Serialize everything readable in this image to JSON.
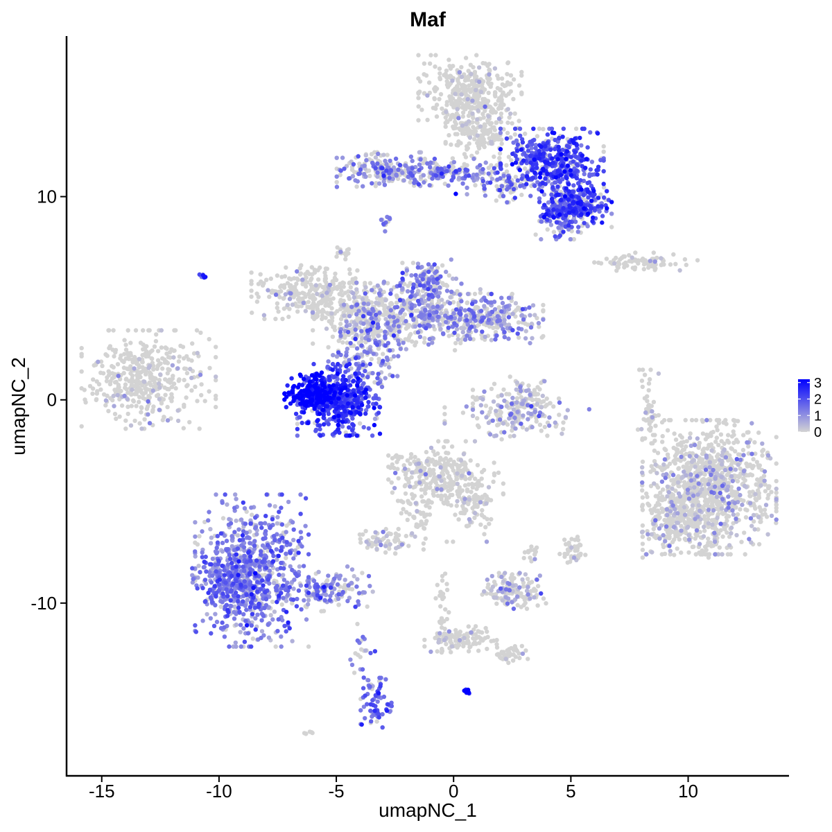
{
  "chart_data": {
    "type": "scatter",
    "title": "Maf",
    "xlabel": "umapNC_1",
    "ylabel": "umapNC_2",
    "xlim": [
      -16.5,
      14.3
    ],
    "ylim": [
      -18.5,
      17.9
    ],
    "x_ticks": [
      -15,
      -10,
      -5,
      0,
      5,
      10
    ],
    "x_tick_labels": [
      "-15",
      "-10",
      "-5",
      "0",
      "5",
      "10"
    ],
    "y_ticks": [
      -10,
      0,
      10
    ],
    "y_tick_labels": [
      "-10",
      "0",
      "10"
    ],
    "grid": false,
    "legend": {
      "placement": "right",
      "type": "colorbar",
      "min": 0,
      "max": 3.2,
      "ticks": [
        0,
        1,
        2,
        3
      ],
      "tick_labels": [
        "0",
        "1",
        "2",
        "3"
      ],
      "low_color": "#d3d3d3",
      "high_color": "#0000ff"
    },
    "clusters": [
      {
        "cx": -13.0,
        "cy": 1.0,
        "sx": 1.3,
        "sy": 1.1,
        "n": 420,
        "expr": 0.25,
        "p": 0.08
      },
      {
        "cx": -8.6,
        "cy": -8.4,
        "sx": 1.1,
        "sy": 1.7,
        "n": 700,
        "expr": 1.25,
        "p": 0.85
      },
      {
        "cx": -9.6,
        "cy": -9.0,
        "sx": 0.7,
        "sy": 0.7,
        "n": 180,
        "expr": 1.4,
        "p": 0.9
      },
      {
        "cx": -5.5,
        "cy": -9.3,
        "sx": 1.2,
        "sy": 0.5,
        "n": 160,
        "expr": 1.1,
        "p": 0.7
      },
      {
        "cx": -3.3,
        "cy": -15.0,
        "sx": 0.3,
        "sy": 0.6,
        "n": 70,
        "expr": 1.6,
        "p": 0.85
      },
      {
        "cx": -3.9,
        "cy": -12.5,
        "sx": 0.25,
        "sy": 0.9,
        "n": 25,
        "expr": 1.2,
        "p": 0.6
      },
      {
        "cx": -6.0,
        "cy": 0.3,
        "sx": 0.55,
        "sy": 0.45,
        "n": 200,
        "expr": 3.0,
        "p": 1.0
      },
      {
        "cx": -4.9,
        "cy": 0.0,
        "sx": 0.8,
        "sy": 0.8,
        "n": 480,
        "expr": 2.1,
        "p": 0.95
      },
      {
        "cx": -3.8,
        "cy": 2.5,
        "sx": 0.7,
        "sy": 1.2,
        "n": 200,
        "expr": 1.1,
        "p": 0.6
      },
      {
        "cx": -6.2,
        "cy": 5.3,
        "sx": 1.1,
        "sy": 0.6,
        "n": 260,
        "expr": 0.4,
        "p": 0.1
      },
      {
        "cx": -3.8,
        "cy": 4.2,
        "sx": 1.0,
        "sy": 0.7,
        "n": 260,
        "expr": 0.4,
        "p": 0.12
      },
      {
        "cx": -1.5,
        "cy": 4.2,
        "sx": 1.2,
        "sy": 0.8,
        "n": 320,
        "expr": 1.0,
        "p": 0.55
      },
      {
        "cx": 1.4,
        "cy": 4.0,
        "sx": 1.1,
        "sy": 0.55,
        "n": 280,
        "expr": 1.0,
        "p": 0.55
      },
      {
        "cx": -1.2,
        "cy": 5.8,
        "sx": 0.5,
        "sy": 0.5,
        "n": 120,
        "expr": 1.2,
        "p": 0.6
      },
      {
        "cx": 0.7,
        "cy": 15.2,
        "sx": 1.0,
        "sy": 0.8,
        "n": 340,
        "expr": 0.3,
        "p": 0.05
      },
      {
        "cx": 1.2,
        "cy": 13.3,
        "sx": 0.7,
        "sy": 0.8,
        "n": 200,
        "expr": 0.3,
        "p": 0.05
      },
      {
        "cx": 4.2,
        "cy": 11.8,
        "sx": 1.0,
        "sy": 0.7,
        "n": 420,
        "expr": 2.0,
        "p": 0.85
      },
      {
        "cx": 5.2,
        "cy": 9.6,
        "sx": 0.7,
        "sy": 0.5,
        "n": 260,
        "expr": 2.0,
        "p": 0.85
      },
      {
        "cx": 4.6,
        "cy": 9.0,
        "sx": 0.5,
        "sy": 0.5,
        "n": 100,
        "expr": 1.3,
        "p": 0.7
      },
      {
        "cx": -3.0,
        "cy": 11.3,
        "sx": 0.9,
        "sy": 0.4,
        "n": 180,
        "expr": 1.1,
        "p": 0.6
      },
      {
        "cx": -0.5,
        "cy": 11.2,
        "sx": 1.2,
        "sy": 0.3,
        "n": 140,
        "expr": 1.3,
        "p": 0.6
      },
      {
        "cx": 2.0,
        "cy": 10.6,
        "sx": 1.0,
        "sy": 0.4,
        "n": 100,
        "expr": 1.4,
        "p": 0.6
      },
      {
        "cx": 8.2,
        "cy": 6.8,
        "sx": 1.0,
        "sy": 0.2,
        "n": 80,
        "expr": 0.2,
        "p": 0.05
      },
      {
        "cx": 2.8,
        "cy": -0.4,
        "sx": 0.9,
        "sy": 0.7,
        "n": 200,
        "expr": 0.6,
        "p": 0.3
      },
      {
        "cx": 8.3,
        "cy": -0.5,
        "sx": 0.2,
        "sy": 0.9,
        "n": 50,
        "expr": 0.3,
        "p": 0.1
      },
      {
        "cx": 10.9,
        "cy": -4.3,
        "sx": 1.3,
        "sy": 1.5,
        "n": 1000,
        "expr": 0.5,
        "p": 0.2
      },
      {
        "cx": 9.6,
        "cy": -6.0,
        "sx": 0.7,
        "sy": 0.8,
        "n": 200,
        "expr": 0.5,
        "p": 0.2
      },
      {
        "cx": -0.8,
        "cy": -3.8,
        "sx": 0.9,
        "sy": 0.8,
        "n": 260,
        "expr": 0.4,
        "p": 0.1
      },
      {
        "cx": 0.8,
        "cy": -5.0,
        "sx": 0.6,
        "sy": 0.9,
        "n": 120,
        "expr": 0.3,
        "p": 0.08
      },
      {
        "cx": -2.9,
        "cy": -6.9,
        "sx": 0.5,
        "sy": 0.3,
        "n": 60,
        "expr": 0.4,
        "p": 0.15
      },
      {
        "cx": -1.6,
        "cy": -5.6,
        "sx": 0.35,
        "sy": 0.8,
        "n": 50,
        "expr": 0.3,
        "p": 0.08
      },
      {
        "cx": 2.4,
        "cy": -9.4,
        "sx": 0.7,
        "sy": 0.4,
        "n": 140,
        "expr": 0.6,
        "p": 0.35
      },
      {
        "cx": 0.3,
        "cy": -11.8,
        "sx": 0.7,
        "sy": 0.3,
        "n": 100,
        "expr": 0.3,
        "p": 0.1
      },
      {
        "cx": -0.5,
        "cy": -10.5,
        "sx": 0.15,
        "sy": 0.9,
        "n": 40,
        "expr": 0.3,
        "p": 0.1
      },
      {
        "cx": 2.3,
        "cy": -12.5,
        "sx": 0.4,
        "sy": 0.2,
        "n": 40,
        "expr": 0.2,
        "p": 0.05
      },
      {
        "cx": 5.1,
        "cy": -7.4,
        "sx": 0.3,
        "sy": 0.3,
        "n": 40,
        "expr": 0.3,
        "p": 0.1
      },
      {
        "cx": 3.3,
        "cy": -7.5,
        "sx": 0.2,
        "sy": 0.2,
        "n": 15,
        "expr": 0.3,
        "p": 0.1
      },
      {
        "cx": 0.6,
        "cy": -14.4,
        "sx": 0.08,
        "sy": 0.08,
        "n": 12,
        "expr": 3.0,
        "p": 1.0
      },
      {
        "cx": -10.7,
        "cy": 6.1,
        "sx": 0.06,
        "sy": 0.06,
        "n": 6,
        "expr": 2.4,
        "p": 1.0
      },
      {
        "cx": -2.9,
        "cy": 8.7,
        "sx": 0.1,
        "sy": 0.25,
        "n": 12,
        "expr": 0.8,
        "p": 0.5
      },
      {
        "cx": -4.6,
        "cy": 7.2,
        "sx": 0.2,
        "sy": 0.2,
        "n": 14,
        "expr": 0.2,
        "p": 0.05
      },
      {
        "cx": -6.2,
        "cy": -16.4,
        "sx": 0.1,
        "sy": 0.08,
        "n": 6,
        "expr": 0.2,
        "p": 0.0
      },
      {
        "cx": 2.7,
        "cy": -0.5,
        "sx": 1.4,
        "sy": 0.3,
        "n": 40,
        "expr": 0.9,
        "p": 0.4
      }
    ]
  }
}
